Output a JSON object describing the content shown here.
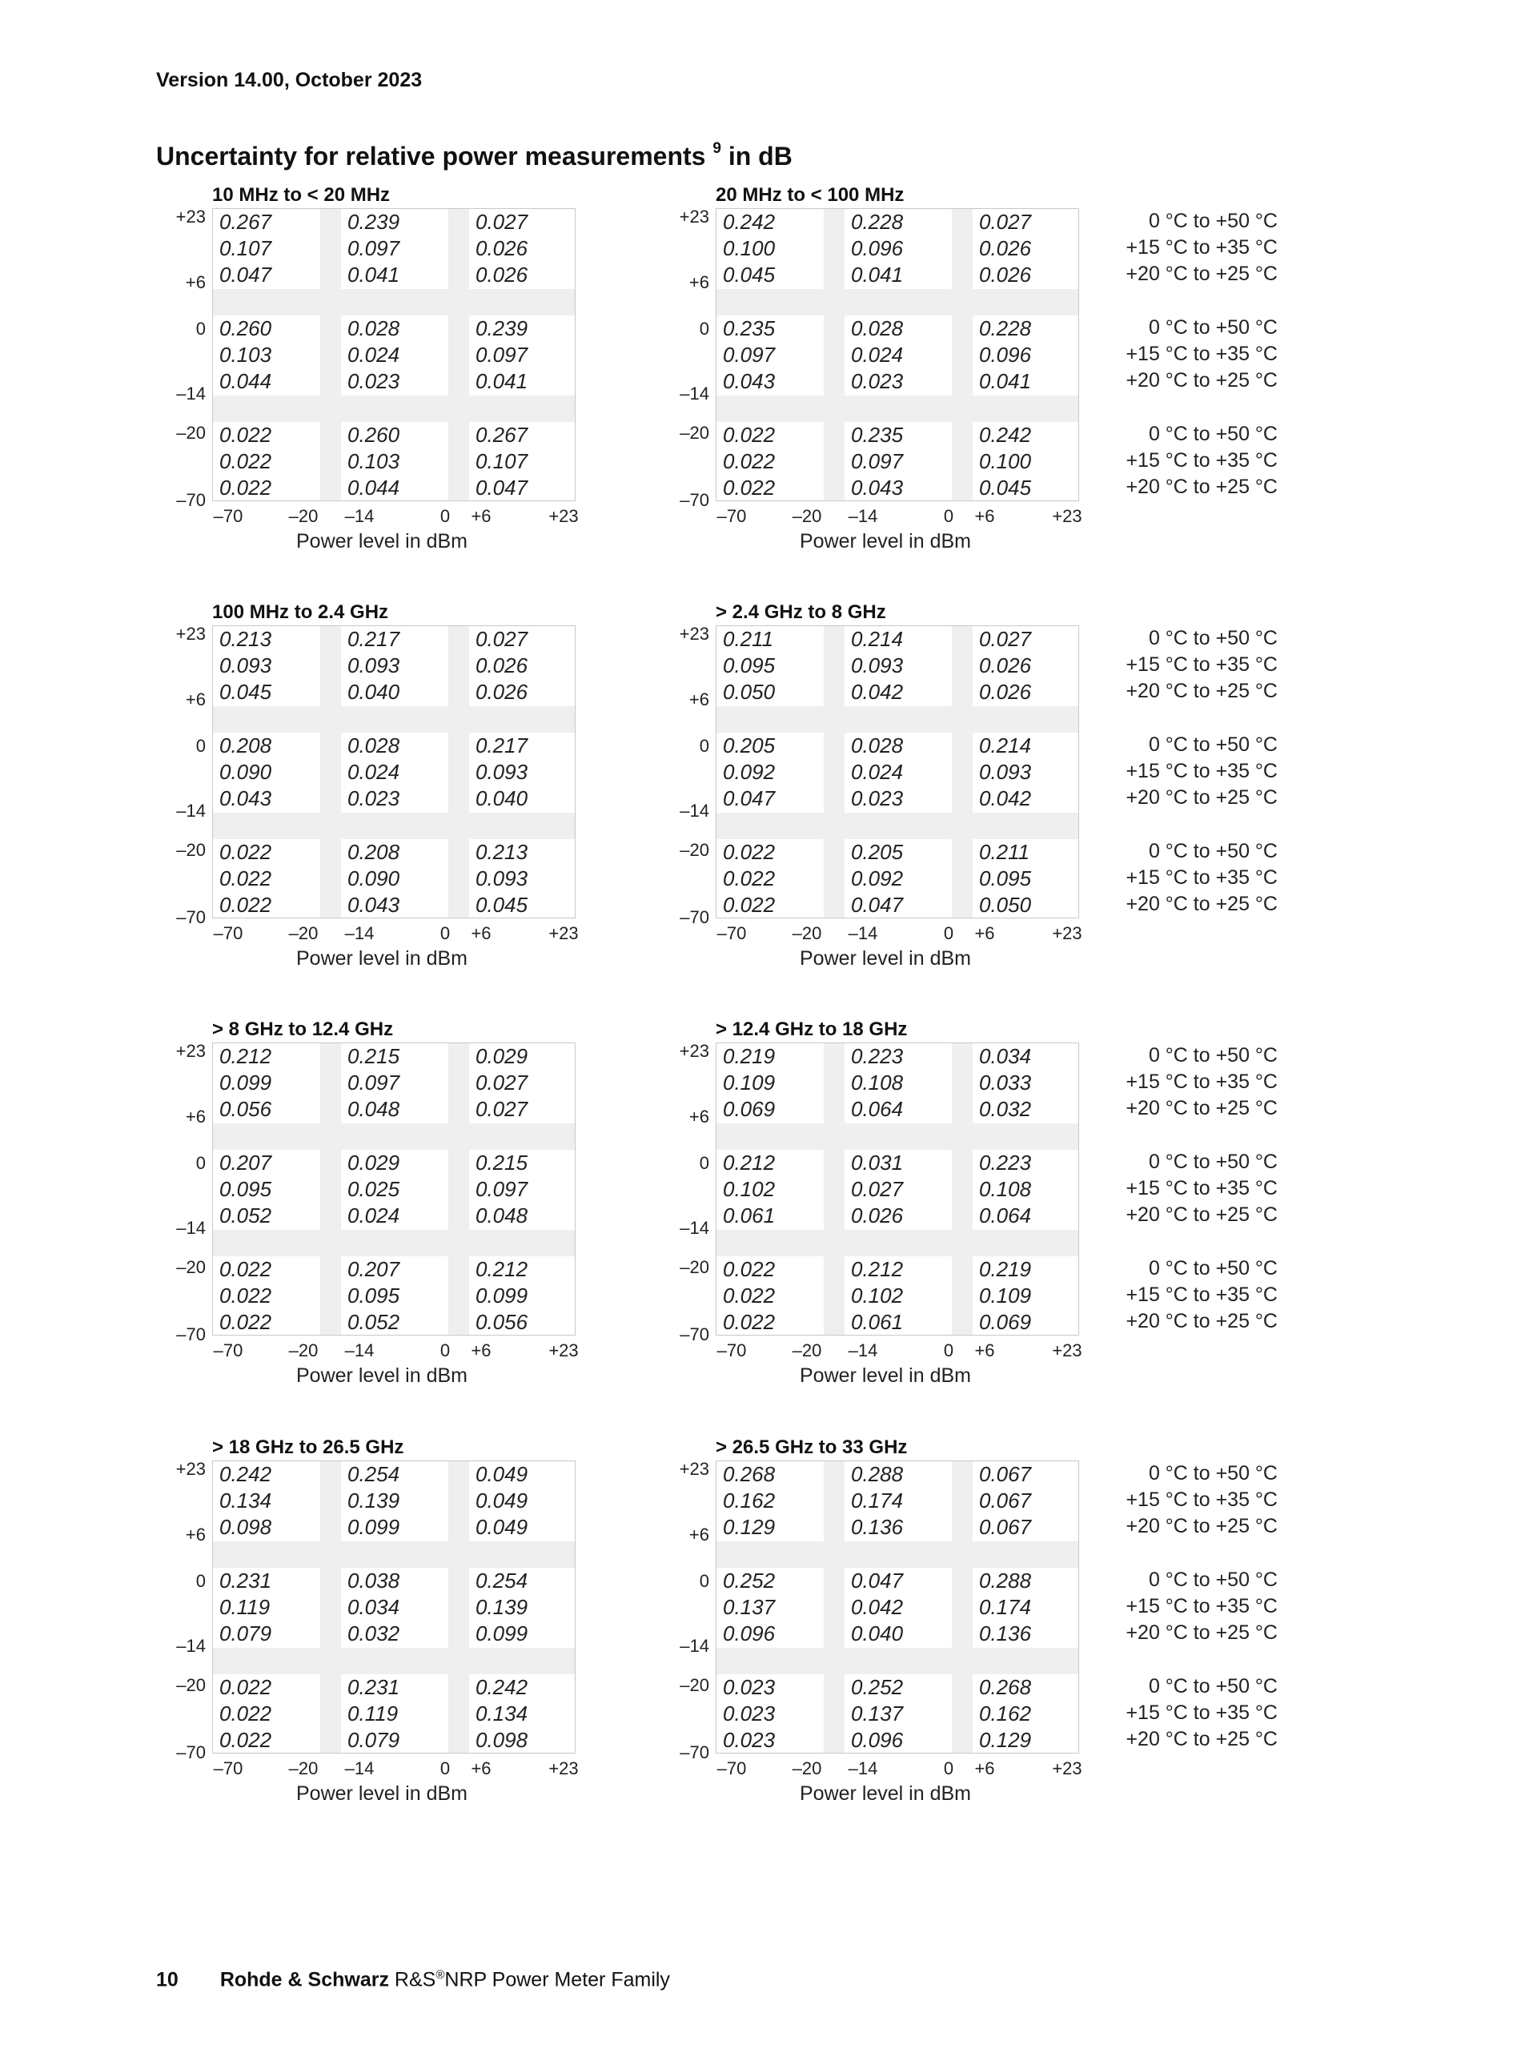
{
  "header": {
    "version": "Version 14.00, October 2023"
  },
  "title": {
    "text": "Uncertainty for relative power measurements",
    "footnote": "9",
    "suffix": "in dB"
  },
  "axis": {
    "y_ticks": [
      "+23",
      "+6",
      "0",
      "–14",
      "–20",
      "–70"
    ],
    "x_ticks": [
      "–70",
      "–20",
      "–14",
      "0",
      "+6",
      "+23"
    ],
    "x_title": "Power level in dBm"
  },
  "temperatures": [
    "0 °C to +50 °C",
    "+15 °C to +35 °C",
    "+20 °C to +25 °C"
  ],
  "blocks": [
    {
      "title": "10 MHz to < 20 MHz",
      "rows": [
        [
          "0.267",
          "0.239",
          "0.027"
        ],
        [
          "0.107",
          "0.097",
          "0.026"
        ],
        [
          "0.047",
          "0.041",
          "0.026"
        ],
        [
          "0.260",
          "0.028",
          "0.239"
        ],
        [
          "0.103",
          "0.024",
          "0.097"
        ],
        [
          "0.044",
          "0.023",
          "0.041"
        ],
        [
          "0.022",
          "0.260",
          "0.267"
        ],
        [
          "0.022",
          "0.103",
          "0.107"
        ],
        [
          "0.022",
          "0.044",
          "0.047"
        ]
      ]
    },
    {
      "title": "20 MHz to < 100 MHz",
      "rows": [
        [
          "0.242",
          "0.228",
          "0.027"
        ],
        [
          "0.100",
          "0.096",
          "0.026"
        ],
        [
          "0.045",
          "0.041",
          "0.026"
        ],
        [
          "0.235",
          "0.028",
          "0.228"
        ],
        [
          "0.097",
          "0.024",
          "0.096"
        ],
        [
          "0.043",
          "0.023",
          "0.041"
        ],
        [
          "0.022",
          "0.235",
          "0.242"
        ],
        [
          "0.022",
          "0.097",
          "0.100"
        ],
        [
          "0.022",
          "0.043",
          "0.045"
        ]
      ]
    },
    {
      "title": "100 MHz to 2.4 GHz",
      "rows": [
        [
          "0.213",
          "0.217",
          "0.027"
        ],
        [
          "0.093",
          "0.093",
          "0.026"
        ],
        [
          "0.045",
          "0.040",
          "0.026"
        ],
        [
          "0.208",
          "0.028",
          "0.217"
        ],
        [
          "0.090",
          "0.024",
          "0.093"
        ],
        [
          "0.043",
          "0.023",
          "0.040"
        ],
        [
          "0.022",
          "0.208",
          "0.213"
        ],
        [
          "0.022",
          "0.090",
          "0.093"
        ],
        [
          "0.022",
          "0.043",
          "0.045"
        ]
      ]
    },
    {
      "title": "> 2.4 GHz to 8 GHz",
      "rows": [
        [
          "0.211",
          "0.214",
          "0.027"
        ],
        [
          "0.095",
          "0.093",
          "0.026"
        ],
        [
          "0.050",
          "0.042",
          "0.026"
        ],
        [
          "0.205",
          "0.028",
          "0.214"
        ],
        [
          "0.092",
          "0.024",
          "0.093"
        ],
        [
          "0.047",
          "0.023",
          "0.042"
        ],
        [
          "0.022",
          "0.205",
          "0.211"
        ],
        [
          "0.022",
          "0.092",
          "0.095"
        ],
        [
          "0.022",
          "0.047",
          "0.050"
        ]
      ]
    },
    {
      "title": "> 8 GHz to 12.4 GHz",
      "rows": [
        [
          "0.212",
          "0.215",
          "0.029"
        ],
        [
          "0.099",
          "0.097",
          "0.027"
        ],
        [
          "0.056",
          "0.048",
          "0.027"
        ],
        [
          "0.207",
          "0.029",
          "0.215"
        ],
        [
          "0.095",
          "0.025",
          "0.097"
        ],
        [
          "0.052",
          "0.024",
          "0.048"
        ],
        [
          "0.022",
          "0.207",
          "0.212"
        ],
        [
          "0.022",
          "0.095",
          "0.099"
        ],
        [
          "0.022",
          "0.052",
          "0.056"
        ]
      ]
    },
    {
      "title": "> 12.4 GHz to 18 GHz",
      "rows": [
        [
          "0.219",
          "0.223",
          "0.034"
        ],
        [
          "0.109",
          "0.108",
          "0.033"
        ],
        [
          "0.069",
          "0.064",
          "0.032"
        ],
        [
          "0.212",
          "0.031",
          "0.223"
        ],
        [
          "0.102",
          "0.027",
          "0.108"
        ],
        [
          "0.061",
          "0.026",
          "0.064"
        ],
        [
          "0.022",
          "0.212",
          "0.219"
        ],
        [
          "0.022",
          "0.102",
          "0.109"
        ],
        [
          "0.022",
          "0.061",
          "0.069"
        ]
      ]
    },
    {
      "title": "> 18 GHz to 26.5 GHz",
      "rows": [
        [
          "0.242",
          "0.254",
          "0.049"
        ],
        [
          "0.134",
          "0.139",
          "0.049"
        ],
        [
          "0.098",
          "0.099",
          "0.049"
        ],
        [
          "0.231",
          "0.038",
          "0.254"
        ],
        [
          "0.119",
          "0.034",
          "0.139"
        ],
        [
          "0.079",
          "0.032",
          "0.099"
        ],
        [
          "0.022",
          "0.231",
          "0.242"
        ],
        [
          "0.022",
          "0.119",
          "0.134"
        ],
        [
          "0.022",
          "0.079",
          "0.098"
        ]
      ]
    },
    {
      "title": "> 26.5 GHz to 33 GHz",
      "rows": [
        [
          "0.268",
          "0.288",
          "0.067"
        ],
        [
          "0.162",
          "0.174",
          "0.067"
        ],
        [
          "0.129",
          "0.136",
          "0.067"
        ],
        [
          "0.252",
          "0.047",
          "0.288"
        ],
        [
          "0.137",
          "0.042",
          "0.174"
        ],
        [
          "0.096",
          "0.040",
          "0.136"
        ],
        [
          "0.023",
          "0.252",
          "0.268"
        ],
        [
          "0.023",
          "0.137",
          "0.162"
        ],
        [
          "0.023",
          "0.096",
          "0.129"
        ]
      ]
    }
  ],
  "footer": {
    "page": "10",
    "brand": "Rohde & Schwarz",
    "product_prefix": "R&S",
    "registered": "®",
    "product": "NRP Power Meter Family"
  }
}
